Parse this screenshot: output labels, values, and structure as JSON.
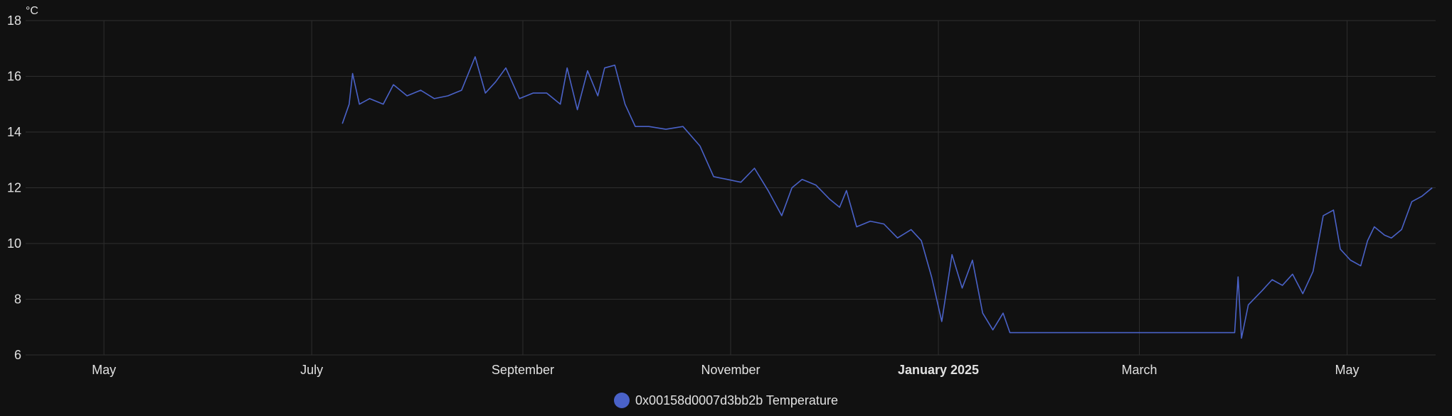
{
  "chart_data": {
    "type": "line",
    "y_unit": "°C",
    "ylim": [
      6,
      18
    ],
    "y_ticks": [
      6,
      8,
      10,
      12,
      14,
      16,
      18
    ],
    "x_range": [
      "2024-04-08",
      "2025-05-27"
    ],
    "x_ticks": [
      {
        "date": "2024-05-01",
        "label": "May",
        "bold": false
      },
      {
        "date": "2024-07-01",
        "label": "July",
        "bold": false
      },
      {
        "date": "2024-09-01",
        "label": "September",
        "bold": false
      },
      {
        "date": "2024-11-01",
        "label": "November",
        "bold": false
      },
      {
        "date": "2025-01-01",
        "label": "January 2025",
        "bold": true
      },
      {
        "date": "2025-03-01",
        "label": "March",
        "bold": false
      },
      {
        "date": "2025-05-01",
        "label": "May",
        "bold": false
      }
    ],
    "grid": true,
    "legend_position": "bottom-center",
    "series": [
      {
        "name": "0x00158d0007d3bb2b Temperature",
        "color": "#4a62c8",
        "points": [
          [
            "2024-07-10",
            14.3
          ],
          [
            "2024-07-12",
            15.0
          ],
          [
            "2024-07-13",
            16.1
          ],
          [
            "2024-07-15",
            15.0
          ],
          [
            "2024-07-18",
            15.2
          ],
          [
            "2024-07-22",
            15.0
          ],
          [
            "2024-07-25",
            15.7
          ],
          [
            "2024-07-29",
            15.3
          ],
          [
            "2024-08-02",
            15.5
          ],
          [
            "2024-08-06",
            15.2
          ],
          [
            "2024-08-10",
            15.3
          ],
          [
            "2024-08-14",
            15.5
          ],
          [
            "2024-08-18",
            16.7
          ],
          [
            "2024-08-21",
            15.4
          ],
          [
            "2024-08-24",
            15.8
          ],
          [
            "2024-08-27",
            16.3
          ],
          [
            "2024-08-31",
            15.2
          ],
          [
            "2024-09-04",
            15.4
          ],
          [
            "2024-09-08",
            15.4
          ],
          [
            "2024-09-12",
            15.0
          ],
          [
            "2024-09-14",
            16.3
          ],
          [
            "2024-09-17",
            14.8
          ],
          [
            "2024-09-20",
            16.2
          ],
          [
            "2024-09-23",
            15.3
          ],
          [
            "2024-09-25",
            16.3
          ],
          [
            "2024-09-28",
            16.4
          ],
          [
            "2024-10-01",
            15.0
          ],
          [
            "2024-10-04",
            14.2
          ],
          [
            "2024-10-08",
            14.2
          ],
          [
            "2024-10-13",
            14.1
          ],
          [
            "2024-10-18",
            14.2
          ],
          [
            "2024-10-23",
            13.5
          ],
          [
            "2024-10-27",
            12.4
          ],
          [
            "2024-10-31",
            12.3
          ],
          [
            "2024-11-04",
            12.2
          ],
          [
            "2024-11-08",
            12.7
          ],
          [
            "2024-11-12",
            11.9
          ],
          [
            "2024-11-16",
            11.0
          ],
          [
            "2024-11-19",
            12.0
          ],
          [
            "2024-11-22",
            12.3
          ],
          [
            "2024-11-26",
            12.1
          ],
          [
            "2024-11-30",
            11.6
          ],
          [
            "2024-12-03",
            11.3
          ],
          [
            "2024-12-05",
            11.9
          ],
          [
            "2024-12-08",
            10.6
          ],
          [
            "2024-12-12",
            10.8
          ],
          [
            "2024-12-16",
            10.7
          ],
          [
            "2024-12-20",
            10.2
          ],
          [
            "2024-12-24",
            10.5
          ],
          [
            "2024-12-27",
            10.1
          ],
          [
            "2024-12-30",
            8.8
          ],
          [
            "2025-01-02",
            7.2
          ],
          [
            "2025-01-05",
            9.6
          ],
          [
            "2025-01-08",
            8.4
          ],
          [
            "2025-01-11",
            9.4
          ],
          [
            "2025-01-14",
            7.5
          ],
          [
            "2025-01-17",
            6.9
          ],
          [
            "2025-01-20",
            7.5
          ],
          [
            "2025-01-22",
            6.8
          ],
          [
            "2025-02-24",
            6.8
          ],
          [
            "2025-03-16",
            6.8
          ],
          [
            "2025-03-29",
            6.8
          ],
          [
            "2025-03-30",
            8.8
          ],
          [
            "2025-03-31",
            6.6
          ],
          [
            "2025-04-02",
            7.8
          ],
          [
            "2025-04-06",
            8.3
          ],
          [
            "2025-04-09",
            8.7
          ],
          [
            "2025-04-12",
            8.5
          ],
          [
            "2025-04-15",
            8.9
          ],
          [
            "2025-04-18",
            8.2
          ],
          [
            "2025-04-21",
            9.0
          ],
          [
            "2025-04-24",
            11.0
          ],
          [
            "2025-04-27",
            11.2
          ],
          [
            "2025-04-29",
            9.8
          ],
          [
            "2025-05-02",
            9.4
          ],
          [
            "2025-05-05",
            9.2
          ],
          [
            "2025-05-07",
            10.1
          ],
          [
            "2025-05-09",
            10.6
          ],
          [
            "2025-05-12",
            10.3
          ],
          [
            "2025-05-14",
            10.2
          ],
          [
            "2025-05-17",
            10.5
          ],
          [
            "2025-05-20",
            11.5
          ],
          [
            "2025-05-23",
            11.7
          ],
          [
            "2025-05-26",
            12.0
          ]
        ]
      }
    ]
  }
}
